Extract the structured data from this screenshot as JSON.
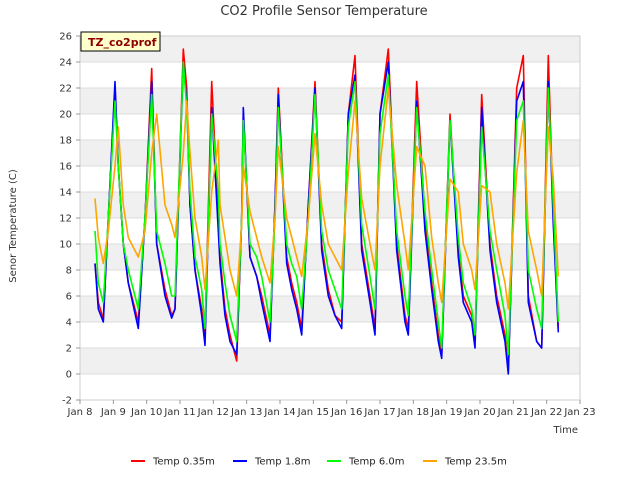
{
  "chart_data": {
    "type": "line",
    "title": "CO2 Profile Sensor Temperature",
    "badge": "TZ_co2prof",
    "xlabel": "Time",
    "ylabel": "Senor Temperature (C)",
    "ylim": [
      -2,
      26
    ],
    "yticks": [
      -2,
      0,
      2,
      4,
      6,
      8,
      10,
      12,
      14,
      16,
      18,
      20,
      22,
      24,
      26
    ],
    "xlim": [
      8,
      23
    ],
    "xticks": [
      8,
      9,
      10,
      11,
      12,
      13,
      14,
      15,
      16,
      17,
      18,
      19,
      20,
      21,
      22,
      23
    ],
    "xtick_labels": [
      "Jan 8",
      "Jan 9",
      "Jan 10",
      "Jan 11",
      "Jan 12",
      "Jan 13",
      "Jan 14",
      "Jan 15",
      "Jan 16",
      "Jan 17",
      "Jan 18",
      "Jan 19",
      "Jan 20",
      "Jan 21",
      "Jan 22",
      "Jan 23"
    ],
    "grid": true,
    "legend_position": "bottom",
    "series": [
      {
        "name": "Temp 0.35m",
        "color": "#ff0000",
        "x": [
          8.45,
          8.55,
          8.7,
          8.85,
          9.05,
          9.15,
          9.3,
          9.45,
          9.75,
          9.95,
          10.15,
          10.3,
          10.55,
          10.75,
          10.85,
          11.1,
          11.2,
          11.3,
          11.45,
          11.65,
          11.75,
          11.95,
          12.15,
          12.2,
          12.35,
          12.5,
          12.7,
          12.85,
          12.9,
          13.1,
          13.3,
          13.45,
          13.7,
          13.85,
          13.95,
          14.2,
          14.35,
          14.5,
          14.65,
          14.85,
          15.05,
          15.25,
          15.45,
          15.65,
          15.85,
          16.05,
          16.25,
          16.45,
          16.7,
          16.85,
          17.0,
          17.25,
          17.5,
          17.75,
          17.85,
          18.1,
          18.35,
          18.55,
          18.75,
          18.85,
          19.1,
          19.35,
          19.5,
          19.75,
          19.85,
          20.05,
          20.3,
          20.5,
          20.75,
          20.85,
          21.1,
          21.3,
          21.45,
          21.7,
          21.85,
          22.05,
          22.2,
          22.35
        ],
        "values": [
          8.5,
          5.5,
          4.2,
          12.0,
          22.0,
          16.0,
          10.0,
          7.0,
          4.0,
          12.0,
          23.5,
          10.0,
          6.5,
          4.5,
          5.0,
          25.0,
          22.0,
          13.0,
          8.0,
          5.0,
          3.0,
          22.5,
          12.0,
          9.0,
          5.0,
          3.0,
          1.0,
          12.0,
          20.0,
          9.0,
          7.5,
          6.0,
          3.0,
          13.0,
          22.0,
          9.0,
          7.0,
          5.5,
          3.5,
          13.0,
          22.5,
          10.0,
          6.5,
          4.5,
          4.0,
          20.0,
          24.5,
          10.0,
          6.0,
          3.5,
          20.0,
          25.0,
          10.0,
          4.5,
          3.5,
          22.5,
          12.0,
          7.0,
          3.0,
          1.5,
          20.0,
          9.5,
          6.0,
          4.5,
          2.5,
          21.5,
          10.0,
          6.0,
          3.0,
          0.2,
          22.0,
          24.5,
          6.0,
          2.5,
          2.0,
          24.5,
          12.0,
          3.5
        ]
      },
      {
        "name": "Temp 1.8m",
        "color": "#0000ff",
        "x": [
          8.45,
          8.55,
          8.7,
          8.85,
          9.05,
          9.15,
          9.3,
          9.45,
          9.75,
          9.95,
          10.15,
          10.3,
          10.55,
          10.75,
          10.85,
          11.1,
          11.2,
          11.3,
          11.45,
          11.65,
          11.75,
          11.95,
          12.15,
          12.2,
          12.35,
          12.5,
          12.7,
          12.85,
          12.9,
          13.1,
          13.3,
          13.45,
          13.7,
          13.85,
          13.95,
          14.2,
          14.35,
          14.5,
          14.65,
          14.85,
          15.05,
          15.25,
          15.45,
          15.65,
          15.85,
          16.05,
          16.25,
          16.45,
          16.7,
          16.85,
          17.0,
          17.25,
          17.5,
          17.75,
          17.85,
          18.1,
          18.35,
          18.55,
          18.75,
          18.85,
          19.1,
          19.35,
          19.5,
          19.75,
          19.85,
          20.05,
          20.3,
          20.5,
          20.75,
          20.85,
          21.1,
          21.3,
          21.45,
          21.7,
          21.85,
          22.05,
          22.2,
          22.35
        ],
        "values": [
          8.5,
          5.0,
          4.0,
          12.0,
          22.5,
          16.0,
          10.0,
          7.0,
          3.5,
          12.0,
          22.5,
          10.0,
          6.0,
          4.3,
          5.0,
          24.0,
          21.0,
          13.0,
          8.0,
          4.5,
          2.2,
          20.5,
          11.0,
          8.5,
          4.5,
          2.5,
          1.5,
          12.0,
          20.5,
          9.0,
          7.5,
          5.5,
          2.5,
          13.0,
          21.5,
          8.5,
          6.5,
          5.0,
          3.0,
          13.0,
          22.0,
          9.5,
          6.0,
          4.5,
          3.5,
          20.0,
          23.0,
          9.5,
          5.5,
          3.0,
          20.0,
          24.0,
          9.5,
          4.0,
          3.0,
          21.0,
          11.0,
          6.5,
          2.5,
          1.2,
          19.5,
          9.0,
          5.5,
          4.0,
          2.0,
          20.5,
          9.5,
          5.5,
          2.5,
          0.0,
          21.0,
          22.5,
          5.5,
          2.5,
          2.0,
          22.5,
          11.5,
          3.2
        ]
      },
      {
        "name": "Temp 6.0m",
        "color": "#00ff00",
        "x": [
          8.45,
          8.55,
          8.7,
          8.85,
          9.05,
          9.15,
          9.3,
          9.45,
          9.75,
          9.95,
          10.15,
          10.3,
          10.55,
          10.75,
          10.85,
          11.1,
          11.2,
          11.3,
          11.45,
          11.65,
          11.75,
          11.95,
          12.15,
          12.2,
          12.35,
          12.5,
          12.7,
          12.85,
          12.9,
          13.1,
          13.3,
          13.45,
          13.7,
          13.85,
          13.95,
          14.2,
          14.35,
          14.5,
          14.65,
          14.85,
          15.05,
          15.25,
          15.45,
          15.65,
          15.85,
          16.05,
          16.25,
          16.45,
          16.7,
          16.85,
          17.0,
          17.25,
          17.5,
          17.75,
          17.85,
          18.1,
          18.35,
          18.55,
          18.75,
          18.85,
          19.1,
          19.35,
          19.5,
          19.75,
          19.85,
          20.05,
          20.3,
          20.5,
          20.75,
          20.85,
          21.1,
          21.3,
          21.45,
          21.7,
          21.85,
          22.05,
          22.2,
          22.35
        ],
        "values": [
          11.0,
          7.0,
          5.5,
          12.0,
          21.0,
          16.0,
          10.0,
          8.0,
          5.0,
          12.0,
          21.5,
          11.0,
          8.5,
          6.0,
          6.0,
          24.0,
          20.5,
          14.0,
          9.0,
          6.5,
          3.5,
          20.0,
          14.0,
          10.0,
          7.0,
          4.5,
          2.5,
          12.0,
          19.5,
          10.0,
          9.0,
          7.5,
          4.0,
          12.0,
          20.5,
          10.0,
          8.5,
          7.5,
          5.0,
          12.0,
          21.5,
          11.0,
          8.0,
          6.5,
          5.0,
          19.0,
          22.5,
          11.5,
          7.5,
          5.0,
          18.5,
          23.0,
          11.0,
          6.0,
          4.5,
          20.5,
          12.5,
          8.0,
          4.0,
          2.0,
          19.5,
          10.5,
          7.0,
          5.0,
          3.0,
          19.0,
          11.0,
          8.0,
          4.5,
          1.5,
          19.5,
          21.0,
          8.0,
          5.0,
          3.5,
          22.0,
          13.0,
          4.0
        ]
      },
      {
        "name": "Temp 23.5m",
        "color": "#ffa500",
        "x": [
          8.45,
          8.55,
          8.7,
          8.85,
          9.05,
          9.15,
          9.3,
          9.45,
          9.75,
          9.95,
          10.15,
          10.3,
          10.55,
          10.75,
          10.85,
          11.1,
          11.2,
          11.3,
          11.45,
          11.65,
          11.75,
          11.95,
          12.15,
          12.2,
          12.35,
          12.5,
          12.7,
          12.85,
          12.9,
          13.1,
          13.3,
          13.45,
          13.7,
          13.85,
          13.95,
          14.2,
          14.35,
          14.5,
          14.65,
          14.85,
          15.05,
          15.25,
          15.45,
          15.65,
          15.85,
          16.05,
          16.25,
          16.45,
          16.7,
          16.85,
          17.0,
          17.25,
          17.5,
          17.75,
          17.85,
          18.1,
          18.35,
          18.55,
          18.75,
          18.85,
          19.1,
          19.35,
          19.5,
          19.75,
          19.85,
          20.05,
          20.3,
          20.5,
          20.75,
          20.85,
          21.1,
          21.3,
          21.45,
          21.7,
          21.85,
          22.05,
          22.2,
          22.35
        ],
        "values": [
          13.5,
          10.5,
          8.5,
          11.0,
          16.0,
          19.0,
          13.0,
          10.5,
          9.0,
          11.0,
          17.0,
          20.0,
          13.0,
          11.5,
          10.5,
          17.0,
          21.0,
          17.0,
          12.0,
          9.0,
          6.5,
          14.0,
          18.0,
          13.0,
          10.5,
          8.0,
          6.0,
          11.5,
          16.0,
          12.5,
          10.5,
          9.0,
          7.0,
          12.0,
          17.5,
          12.0,
          10.5,
          9.0,
          7.5,
          12.0,
          18.5,
          13.0,
          10.0,
          9.0,
          8.0,
          15.5,
          21.0,
          13.5,
          10.0,
          8.0,
          16.0,
          22.0,
          14.5,
          10.0,
          8.0,
          17.5,
          16.0,
          10.5,
          7.0,
          5.5,
          15.0,
          14.0,
          10.0,
          8.0,
          6.5,
          14.5,
          14.0,
          10.0,
          7.0,
          5.0,
          15.5,
          19.5,
          11.0,
          8.0,
          6.0,
          19.0,
          15.0,
          7.5
        ]
      }
    ]
  }
}
